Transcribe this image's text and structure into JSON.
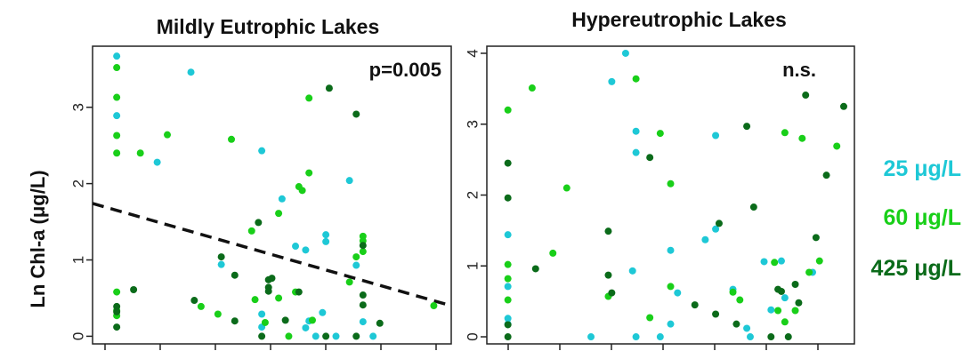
{
  "chart_data": [
    {
      "type": "scatter",
      "title": "Mildly Eutrophic Lakes",
      "ylabel": "Ln Chl-a (μg/L)",
      "xlabel": "",
      "xlim": [
        0,
        1
      ],
      "ylim": [
        -0.1,
        3.8
      ],
      "y_ticks": [
        "0",
        "1",
        "2",
        "3"
      ],
      "annotation": "p=0.005",
      "trendline": {
        "style": "dashed",
        "points": [
          [
            0,
            1.74
          ],
          [
            1,
            0.4
          ]
        ]
      },
      "grid": false,
      "series": [
        {
          "name": "25 μg/L",
          "color": "#1ec8d6",
          "points": [
            {
              "x": 0.04,
              "y": 3.67
            },
            {
              "x": 0.04,
              "y": 2.89
            },
            {
              "x": 0.16,
              "y": 2.28
            },
            {
              "x": 0.26,
              "y": 3.46
            },
            {
              "x": 0.35,
              "y": 0.94
            },
            {
              "x": 0.47,
              "y": 2.43
            },
            {
              "x": 0.47,
              "y": 0.29
            },
            {
              "x": 0.47,
              "y": 0.12
            },
            {
              "x": 0.53,
              "y": 1.8
            },
            {
              "x": 0.57,
              "y": 1.18
            },
            {
              "x": 0.6,
              "y": 1.13
            },
            {
              "x": 0.61,
              "y": 0.2
            },
            {
              "x": 0.6,
              "y": 0.11
            },
            {
              "x": 0.63,
              "y": 0.0
            },
            {
              "x": 0.66,
              "y": 1.33
            },
            {
              "x": 0.66,
              "y": 1.24
            },
            {
              "x": 0.65,
              "y": 0.31
            },
            {
              "x": 0.73,
              "y": 2.04
            },
            {
              "x": 0.75,
              "y": 0.93
            },
            {
              "x": 0.77,
              "y": 0.19
            },
            {
              "x": 0.8,
              "y": 0.0
            },
            {
              "x": 0.69,
              "y": 0.0
            }
          ]
        },
        {
          "name": "60 μg/L",
          "color": "#19cf19",
          "points": [
            {
              "x": 0.04,
              "y": 3.52
            },
            {
              "x": 0.04,
              "y": 3.13
            },
            {
              "x": 0.04,
              "y": 2.63
            },
            {
              "x": 0.04,
              "y": 2.4
            },
            {
              "x": 0.04,
              "y": 0.58
            },
            {
              "x": 0.04,
              "y": 0.34
            },
            {
              "x": 0.04,
              "y": 0.27
            },
            {
              "x": 0.11,
              "y": 2.4
            },
            {
              "x": 0.19,
              "y": 2.64
            },
            {
              "x": 0.29,
              "y": 0.39
            },
            {
              "x": 0.34,
              "y": 0.29
            },
            {
              "x": 0.38,
              "y": 2.58
            },
            {
              "x": 0.45,
              "y": 0.48
            },
            {
              "x": 0.48,
              "y": 0.18
            },
            {
              "x": 0.44,
              "y": 1.38
            },
            {
              "x": 0.52,
              "y": 1.61
            },
            {
              "x": 0.52,
              "y": 0.5
            },
            {
              "x": 0.59,
              "y": 1.91
            },
            {
              "x": 0.61,
              "y": 3.12
            },
            {
              "x": 0.61,
              "y": 2.14
            },
            {
              "x": 0.57,
              "y": 0.58
            },
            {
              "x": 0.55,
              "y": 0.0
            },
            {
              "x": 0.62,
              "y": 0.21
            },
            {
              "x": 0.73,
              "y": 0.71
            },
            {
              "x": 0.75,
              "y": 1.04
            },
            {
              "x": 0.77,
              "y": 1.31
            },
            {
              "x": 0.77,
              "y": 1.25
            },
            {
              "x": 0.77,
              "y": 1.11
            },
            {
              "x": 0.98,
              "y": 0.4
            },
            {
              "x": 0.58,
              "y": 1.96
            }
          ]
        },
        {
          "name": "425 μg/L",
          "color": "#0b6b1a",
          "points": [
            {
              "x": 0.04,
              "y": 0.39
            },
            {
              "x": 0.04,
              "y": 0.32
            },
            {
              "x": 0.04,
              "y": 0.12
            },
            {
              "x": 0.09,
              "y": 0.61
            },
            {
              "x": 0.27,
              "y": 0.47
            },
            {
              "x": 0.35,
              "y": 1.04
            },
            {
              "x": 0.39,
              "y": 0.8
            },
            {
              "x": 0.39,
              "y": 0.2
            },
            {
              "x": 0.47,
              "y": 0.0
            },
            {
              "x": 0.49,
              "y": 0.74
            },
            {
              "x": 0.49,
              "y": 0.64
            },
            {
              "x": 0.49,
              "y": 0.59
            },
            {
              "x": 0.5,
              "y": 0.76
            },
            {
              "x": 0.46,
              "y": 1.49
            },
            {
              "x": 0.58,
              "y": 0.58
            },
            {
              "x": 0.54,
              "y": 0.21
            },
            {
              "x": 0.67,
              "y": 3.25
            },
            {
              "x": 0.66,
              "y": 0.0
            },
            {
              "x": 0.75,
              "y": 2.91
            },
            {
              "x": 0.77,
              "y": 1.19
            },
            {
              "x": 0.77,
              "y": 0.54
            },
            {
              "x": 0.77,
              "y": 0.41
            },
            {
              "x": 0.75,
              "y": 0.0
            },
            {
              "x": 0.82,
              "y": 0.17
            }
          ]
        }
      ]
    },
    {
      "type": "scatter",
      "title": "Hypereutrophic Lakes",
      "ylabel": "",
      "xlabel": "",
      "xlim": [
        0,
        1
      ],
      "ylim": [
        -0.1,
        4.1
      ],
      "y_ticks": [
        "0",
        "1",
        "2",
        "3",
        "4"
      ],
      "annotation": "n.s.",
      "grid": false,
      "series": [
        {
          "name": "25 μg/L",
          "color": "#1ec8d6",
          "points": [
            {
              "x": 0.03,
              "y": 1.44
            },
            {
              "x": 0.03,
              "y": 0.71
            },
            {
              "x": 0.03,
              "y": 0.26
            },
            {
              "x": 0.03,
              "y": 0.18
            },
            {
              "x": 0.27,
              "y": 0.0
            },
            {
              "x": 0.33,
              "y": 3.6
            },
            {
              "x": 0.37,
              "y": 4.0
            },
            {
              "x": 0.4,
              "y": 2.9
            },
            {
              "x": 0.4,
              "y": 2.6
            },
            {
              "x": 0.39,
              "y": 0.93
            },
            {
              "x": 0.4,
              "y": 0.0
            },
            {
              "x": 0.47,
              "y": 0.0
            },
            {
              "x": 0.5,
              "y": 1.22
            },
            {
              "x": 0.5,
              "y": 0.18
            },
            {
              "x": 0.52,
              "y": 0.62
            },
            {
              "x": 0.6,
              "y": 1.37
            },
            {
              "x": 0.63,
              "y": 2.84
            },
            {
              "x": 0.63,
              "y": 1.52
            },
            {
              "x": 0.68,
              "y": 0.67
            },
            {
              "x": 0.72,
              "y": 0.12
            },
            {
              "x": 0.73,
              "y": 0.0
            },
            {
              "x": 0.77,
              "y": 1.06
            },
            {
              "x": 0.79,
              "y": 0.38
            },
            {
              "x": 0.82,
              "y": 1.07
            },
            {
              "x": 0.83,
              "y": 0.55
            },
            {
              "x": 0.91,
              "y": 0.91
            }
          ]
        },
        {
          "name": "60 μg/L",
          "color": "#19cf19",
          "points": [
            {
              "x": 0.03,
              "y": 3.2
            },
            {
              "x": 0.03,
              "y": 1.02
            },
            {
              "x": 0.03,
              "y": 0.82
            },
            {
              "x": 0.03,
              "y": 0.52
            },
            {
              "x": 0.1,
              "y": 3.51
            },
            {
              "x": 0.16,
              "y": 1.18
            },
            {
              "x": 0.2,
              "y": 2.1
            },
            {
              "x": 0.32,
              "y": 0.57
            },
            {
              "x": 0.4,
              "y": 3.64
            },
            {
              "x": 0.44,
              "y": 0.27
            },
            {
              "x": 0.47,
              "y": 2.87
            },
            {
              "x": 0.5,
              "y": 2.16
            },
            {
              "x": 0.5,
              "y": 0.71
            },
            {
              "x": 0.68,
              "y": 0.63
            },
            {
              "x": 0.7,
              "y": 0.52
            },
            {
              "x": 0.8,
              "y": 1.05
            },
            {
              "x": 0.81,
              "y": 0.37
            },
            {
              "x": 0.83,
              "y": 2.88
            },
            {
              "x": 0.83,
              "y": 0.21
            },
            {
              "x": 0.86,
              "y": 0.37
            },
            {
              "x": 0.9,
              "y": 0.91
            },
            {
              "x": 0.88,
              "y": 2.8
            },
            {
              "x": 0.93,
              "y": 1.07
            },
            {
              "x": 0.98,
              "y": 2.69
            }
          ]
        },
        {
          "name": "425 μg/L",
          "color": "#0b6b1a",
          "points": [
            {
              "x": 0.03,
              "y": 2.45
            },
            {
              "x": 0.03,
              "y": 1.96
            },
            {
              "x": 0.03,
              "y": 0.17
            },
            {
              "x": 0.03,
              "y": 0.0
            },
            {
              "x": 0.11,
              "y": 0.96
            },
            {
              "x": 0.32,
              "y": 1.49
            },
            {
              "x": 0.32,
              "y": 0.87
            },
            {
              "x": 0.33,
              "y": 0.62
            },
            {
              "x": 0.44,
              "y": 2.53
            },
            {
              "x": 0.57,
              "y": 0.45
            },
            {
              "x": 0.64,
              "y": 1.6
            },
            {
              "x": 0.63,
              "y": 0.32
            },
            {
              "x": 0.69,
              "y": 0.18
            },
            {
              "x": 0.72,
              "y": 2.97
            },
            {
              "x": 0.74,
              "y": 1.83
            },
            {
              "x": 0.79,
              "y": 0.0
            },
            {
              "x": 0.81,
              "y": 0.67
            },
            {
              "x": 0.82,
              "y": 0.64
            },
            {
              "x": 0.84,
              "y": 0.0
            },
            {
              "x": 0.86,
              "y": 0.74
            },
            {
              "x": 0.87,
              "y": 0.48
            },
            {
              "x": 0.89,
              "y": 3.41
            },
            {
              "x": 0.92,
              "y": 1.4
            },
            {
              "x": 0.95,
              "y": 2.28
            },
            {
              "x": 1.0,
              "y": 3.25
            }
          ]
        }
      ]
    }
  ],
  "legend": [
    {
      "label": "25 μg/L",
      "color": "#1ec8d6"
    },
    {
      "label": "60 μg/L",
      "color": "#19cf19"
    },
    {
      "label": "425 μg/L",
      "color": "#0b6b1a"
    }
  ]
}
